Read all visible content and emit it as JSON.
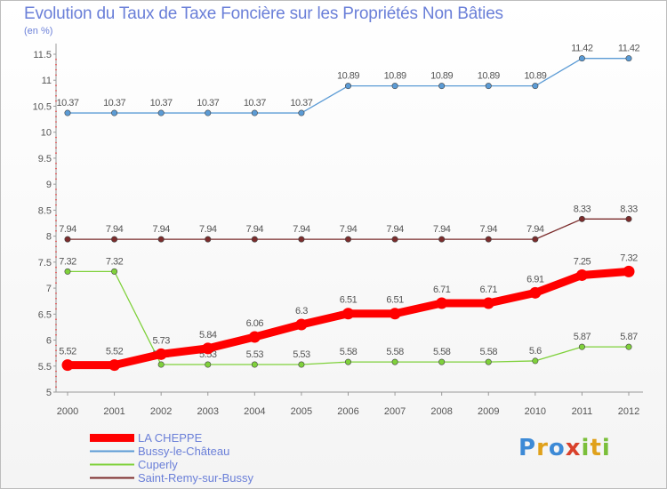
{
  "title": "Evolution du Taux de Taxe Foncière sur les Propriétés Non Bâties",
  "unit_label": "(en %)",
  "logo_text": "Proxiti",
  "chart_data": {
    "type": "line",
    "title": "Evolution du Taux de Taxe Foncière sur les Propriétés Non Bâties",
    "ylabel": "(en %)",
    "xlabel": "",
    "ylim": [
      5,
      11.5
    ],
    "yticks": [
      "5",
      "5.5",
      "6",
      "6.5",
      "7",
      "7.5",
      "8",
      "8.5",
      "9",
      "9.5",
      "10",
      "10.5",
      "11",
      "11.5"
    ],
    "categories": [
      "2000",
      "2001",
      "2002",
      "2003",
      "2004",
      "2005",
      "2006",
      "2007",
      "2008",
      "2009",
      "2010",
      "2011",
      "2012"
    ],
    "grid": false,
    "legend": "bottom-left",
    "series": [
      {
        "name": "LA CHEPPE",
        "color": "#ff0000",
        "values": [
          5.52,
          5.52,
          5.73,
          5.84,
          6.06,
          6.3,
          6.51,
          6.51,
          6.71,
          6.71,
          6.91,
          7.25,
          7.32
        ],
        "labels": [
          "5.52",
          "5.52",
          "5.73",
          "5.84",
          "6.06",
          "6.3",
          "6.51",
          "6.51",
          "6.71",
          "6.71",
          "6.91",
          "7.25",
          "7.32"
        ]
      },
      {
        "name": "Bussy-le-Château",
        "color": "#5b9bd5",
        "values": [
          10.37,
          10.37,
          10.37,
          10.37,
          10.37,
          10.37,
          10.89,
          10.89,
          10.89,
          10.89,
          10.89,
          11.42,
          11.42
        ],
        "labels": [
          "10.37",
          "10.37",
          "10.37",
          "10.37",
          "10.37",
          "10.37",
          "10.89",
          "10.89",
          "10.89",
          "10.89",
          "10.89",
          "11.42",
          "11.42"
        ]
      },
      {
        "name": "Cuperly",
        "color": "#7fd13b",
        "values": [
          7.32,
          7.32,
          5.53,
          5.53,
          5.53,
          5.53,
          5.58,
          5.58,
          5.58,
          5.58,
          5.6,
          5.87,
          5.87
        ],
        "labels": [
          "7.32",
          "7.32",
          "5.53",
          "5.53",
          "5.53",
          "5.53",
          "5.58",
          "5.58",
          "5.58",
          "5.58",
          "5.6",
          "5.87",
          "5.87"
        ]
      },
      {
        "name": "Saint-Remy-sur-Bussy",
        "color": "#7b2c2c",
        "values": [
          7.94,
          7.94,
          7.94,
          7.94,
          7.94,
          7.94,
          7.94,
          7.94,
          7.94,
          7.94,
          7.94,
          8.33,
          8.33
        ],
        "labels": [
          "7.94",
          "7.94",
          "7.94",
          "7.94",
          "7.94",
          "7.94",
          "7.94",
          "7.94",
          "7.94",
          "7.94",
          "7.94",
          "8.33",
          "8.33"
        ]
      }
    ]
  }
}
